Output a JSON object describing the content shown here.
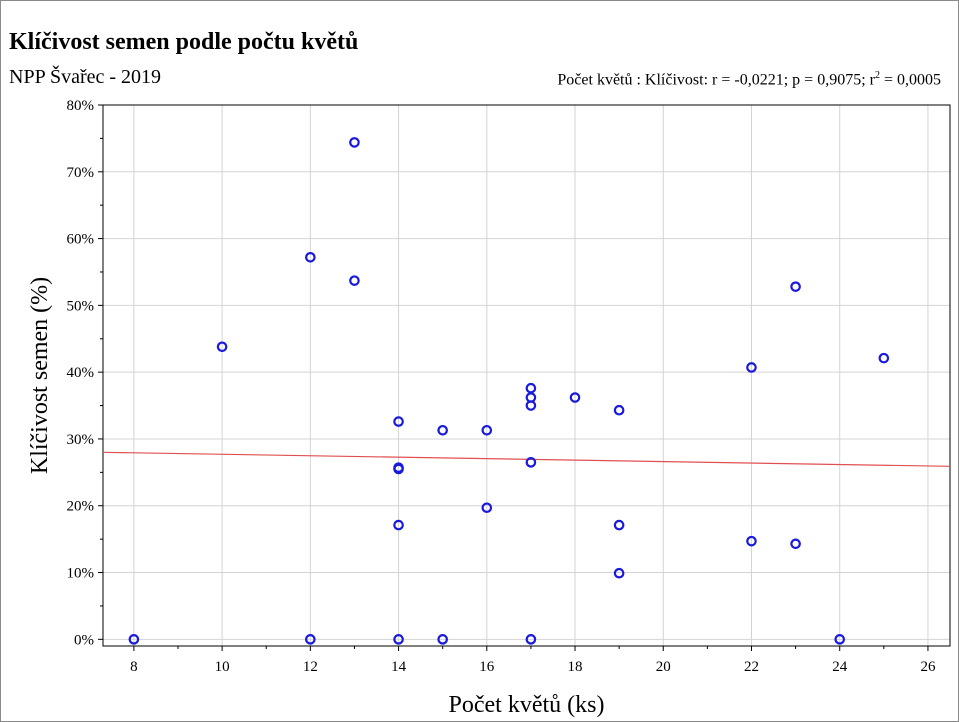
{
  "title": "Klíčivost semen podle počtu květů",
  "subtitle": "NPP Švařec - 2019",
  "stats": {
    "prefix": "Počet květů : Klíčivost: r = -0,0221; p = 0,9075; r",
    "exponent": "2",
    "suffix": " = 0,0005"
  },
  "chart_data": {
    "type": "scatter",
    "xlabel": "Počet květů (ks)",
    "ylabel": "Klíčivost semen (%)",
    "xlim": [
      7.3,
      26.5
    ],
    "ylim": [
      -1,
      80
    ],
    "x_ticks": [
      8,
      10,
      12,
      14,
      16,
      18,
      20,
      22,
      24,
      26
    ],
    "y_ticks": [
      0,
      10,
      20,
      30,
      40,
      50,
      60,
      70,
      80
    ],
    "y_tick_labels": [
      "0%",
      "10%",
      "20%",
      "30%",
      "40%",
      "50%",
      "60%",
      "70%",
      "80%"
    ],
    "grid": true,
    "marker_color": "#1a1adc",
    "fit_line_color": "#e05050",
    "points": [
      {
        "x": 8,
        "y": 0
      },
      {
        "x": 10,
        "y": 43.8
      },
      {
        "x": 12,
        "y": 57.2
      },
      {
        "x": 12,
        "y": 0
      },
      {
        "x": 13,
        "y": 74.4
      },
      {
        "x": 13,
        "y": 53.7
      },
      {
        "x": 14,
        "y": 32.6
      },
      {
        "x": 14,
        "y": 25.7
      },
      {
        "x": 14,
        "y": 25.5
      },
      {
        "x": 14,
        "y": 17.1
      },
      {
        "x": 14,
        "y": 0
      },
      {
        "x": 15,
        "y": 31.3
      },
      {
        "x": 15,
        "y": 0
      },
      {
        "x": 16,
        "y": 31.3
      },
      {
        "x": 16,
        "y": 19.7
      },
      {
        "x": 17,
        "y": 37.6
      },
      {
        "x": 17,
        "y": 36.2
      },
      {
        "x": 17,
        "y": 35
      },
      {
        "x": 17,
        "y": 26.5
      },
      {
        "x": 17,
        "y": 0
      },
      {
        "x": 18,
        "y": 36.2
      },
      {
        "x": 19,
        "y": 34.3
      },
      {
        "x": 19,
        "y": 17.1
      },
      {
        "x": 19,
        "y": 9.9
      },
      {
        "x": 22,
        "y": 40.7
      },
      {
        "x": 22,
        "y": 14.7
      },
      {
        "x": 23,
        "y": 52.8
      },
      {
        "x": 23,
        "y": 14.3
      },
      {
        "x": 24,
        "y": 0
      },
      {
        "x": 25,
        "y": 42.1
      }
    ],
    "fit_line": {
      "x": [
        7.3,
        26.5
      ],
      "y": [
        28,
        25.9
      ]
    }
  }
}
